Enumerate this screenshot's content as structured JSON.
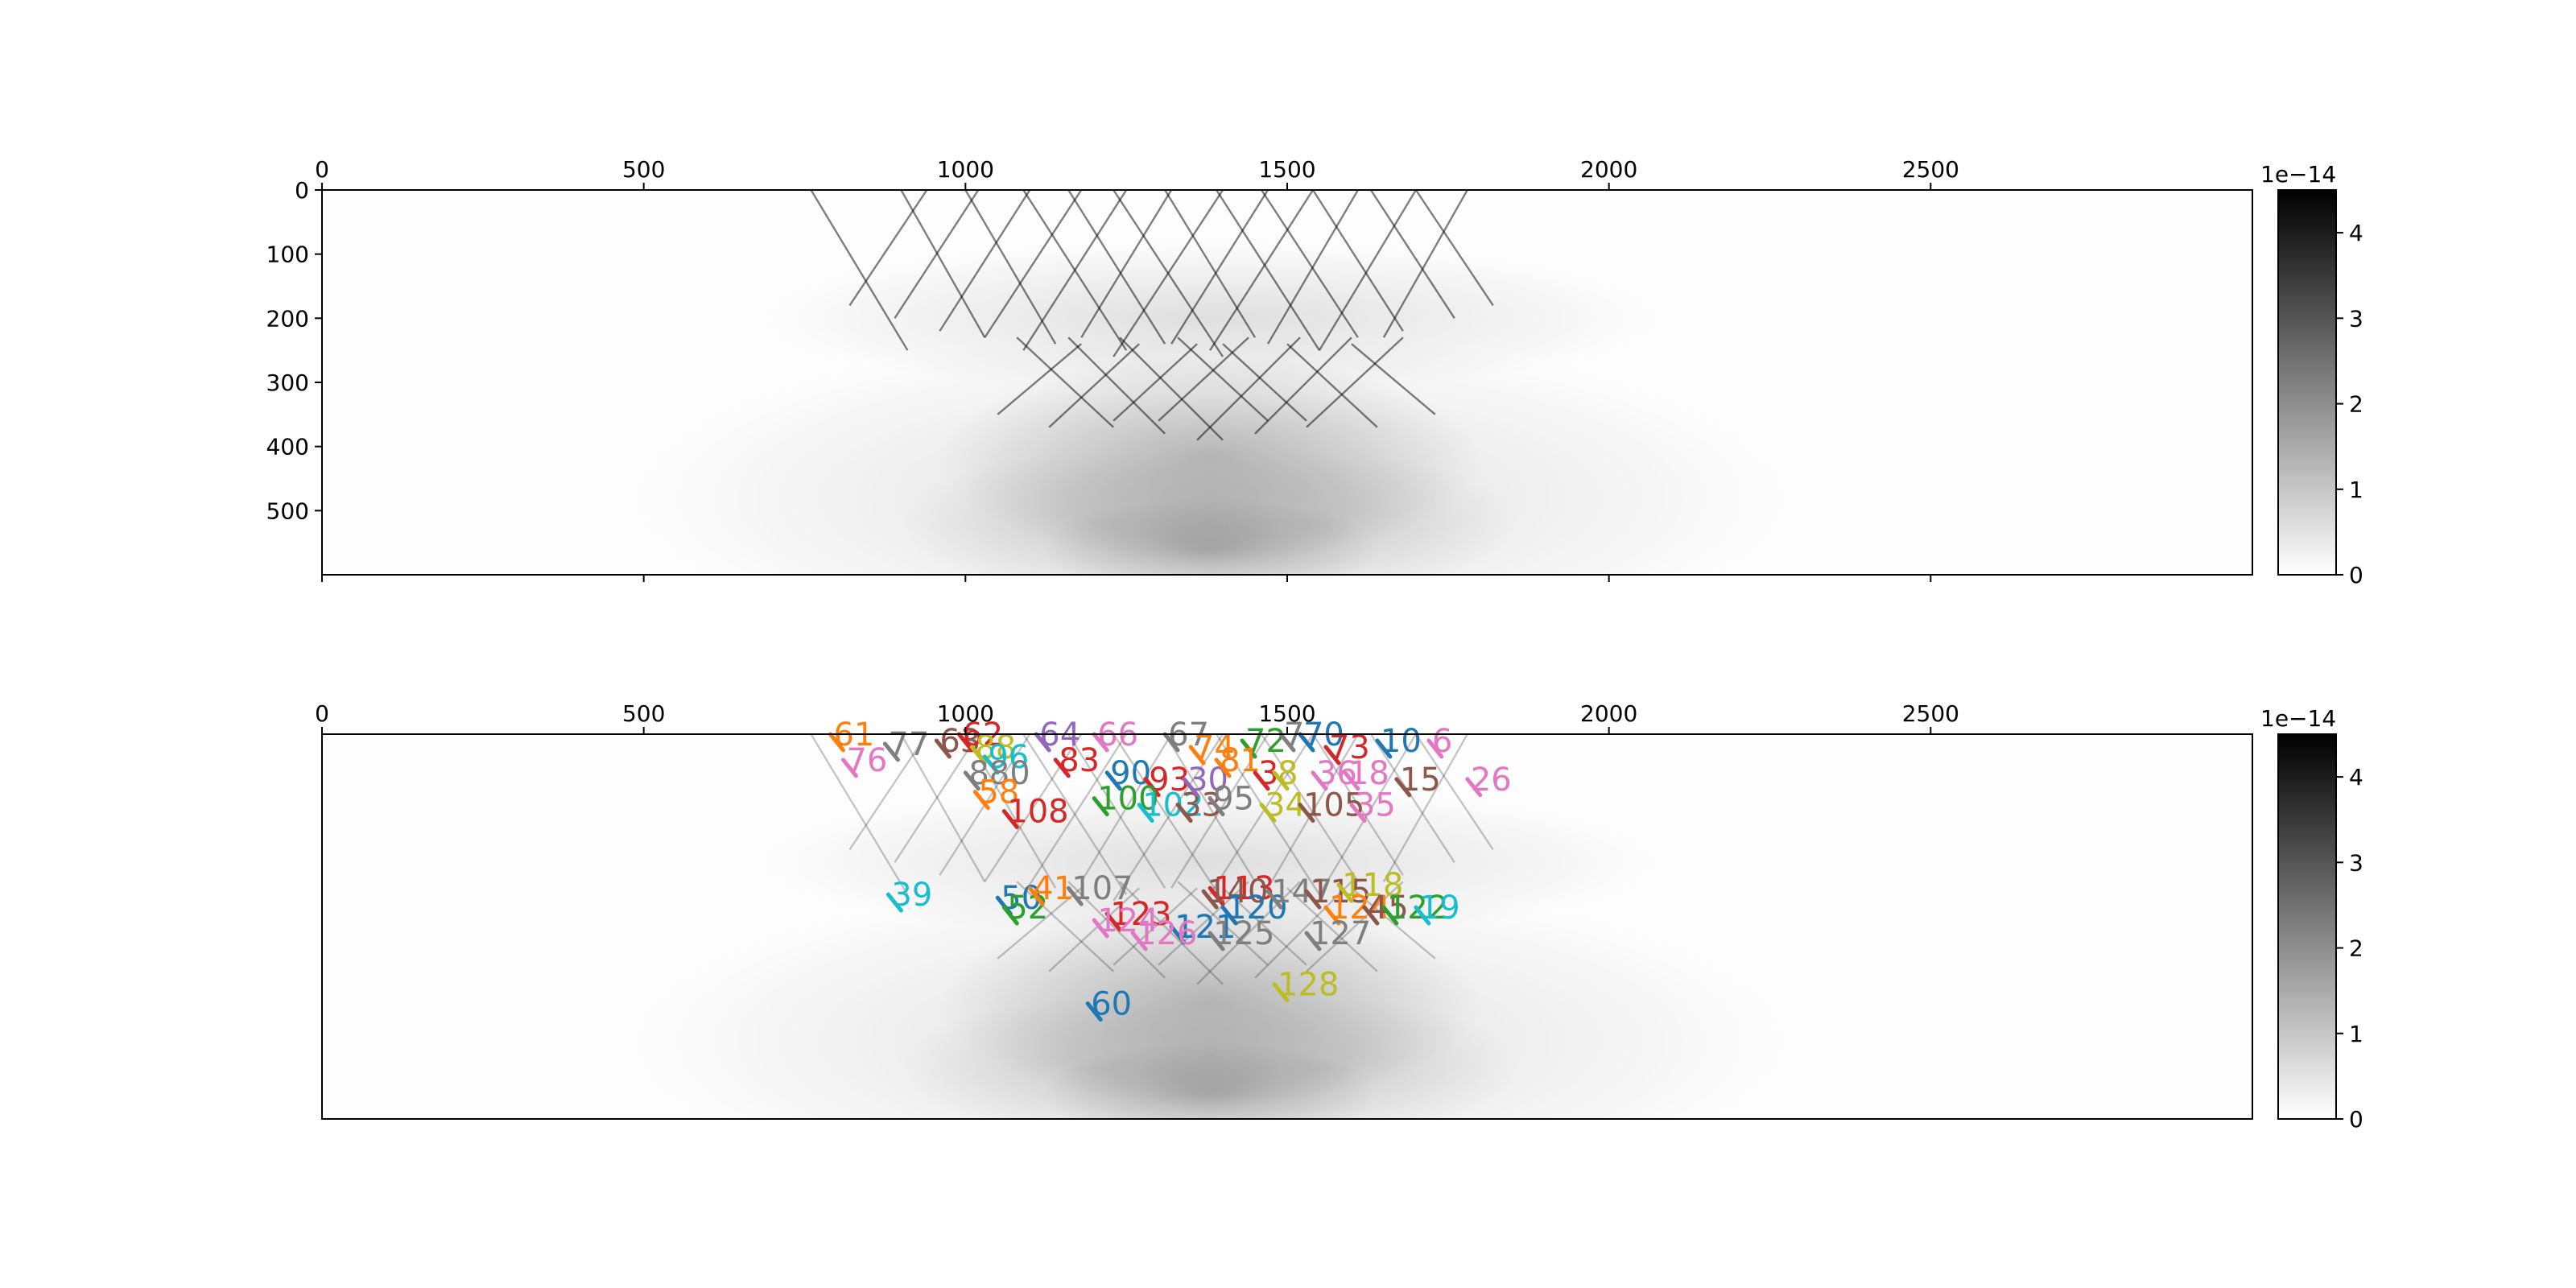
{
  "chart_data": [
    {
      "type": "heatmap",
      "panel": "top",
      "x_ticks": [
        0,
        500,
        1000,
        1500,
        2000,
        2500
      ],
      "y_ticks": [
        0,
        100,
        200,
        300,
        400,
        500
      ],
      "xlim": [
        0,
        3000
      ],
      "ylim": [
        600,
        0
      ],
      "x_tick_position": "top",
      "colormap": "gray_r",
      "colorbar": {
        "ticks": [
          0,
          1,
          2,
          3,
          4
        ],
        "offset_text": "1e−14",
        "vmin": 0,
        "vmax": 4.5
      },
      "streaks": [
        {
          "x": 760,
          "y": 0,
          "dx": 150,
          "dy": 250
        },
        {
          "x": 900,
          "y": 0,
          "dx": 130,
          "dy": 230
        },
        {
          "x": 1000,
          "y": 0,
          "dx": 140,
          "dy": 240
        },
        {
          "x": 1090,
          "y": 0,
          "dx": 160,
          "dy": 250
        },
        {
          "x": 1160,
          "y": 0,
          "dx": 150,
          "dy": 240
        },
        {
          "x": 1230,
          "y": 0,
          "dx": 170,
          "dy": 260
        },
        {
          "x": 1310,
          "y": 0,
          "dx": 140,
          "dy": 230
        },
        {
          "x": 1390,
          "y": 0,
          "dx": 160,
          "dy": 250
        },
        {
          "x": 1460,
          "y": 0,
          "dx": 150,
          "dy": 230
        },
        {
          "x": 1540,
          "y": 0,
          "dx": 140,
          "dy": 220
        },
        {
          "x": 1630,
          "y": 0,
          "dx": 130,
          "dy": 200
        },
        {
          "x": 1700,
          "y": 0,
          "dx": 120,
          "dy": 180
        },
        {
          "x": 1780,
          "y": 0,
          "dx": -130,
          "dy": 230
        },
        {
          "x": 1700,
          "y": 0,
          "dx": -150,
          "dy": 250
        },
        {
          "x": 1610,
          "y": 0,
          "dx": -140,
          "dy": 240
        },
        {
          "x": 1540,
          "y": 0,
          "dx": -160,
          "dy": 250
        },
        {
          "x": 1470,
          "y": 0,
          "dx": -150,
          "dy": 240
        },
        {
          "x": 1400,
          "y": 0,
          "dx": -170,
          "dy": 260
        },
        {
          "x": 1320,
          "y": 0,
          "dx": -140,
          "dy": 230
        },
        {
          "x": 1250,
          "y": 0,
          "dx": -160,
          "dy": 250
        },
        {
          "x": 1180,
          "y": 0,
          "dx": -150,
          "dy": 230
        },
        {
          "x": 1100,
          "y": 0,
          "dx": -140,
          "dy": 220
        },
        {
          "x": 1020,
          "y": 0,
          "dx": -130,
          "dy": 200
        },
        {
          "x": 940,
          "y": 0,
          "dx": -120,
          "dy": 180
        },
        {
          "x": 1080,
          "y": 230,
          "dx": 150,
          "dy": 140
        },
        {
          "x": 1160,
          "y": 230,
          "dx": 150,
          "dy": 150
        },
        {
          "x": 1240,
          "y": 230,
          "dx": 160,
          "dy": 160
        },
        {
          "x": 1330,
          "y": 230,
          "dx": 140,
          "dy": 130
        },
        {
          "x": 1400,
          "y": 240,
          "dx": 130,
          "dy": 120
        },
        {
          "x": 1500,
          "y": 240,
          "dx": 140,
          "dy": 130
        },
        {
          "x": 1600,
          "y": 240,
          "dx": 130,
          "dy": 110
        },
        {
          "x": 1680,
          "y": 230,
          "dx": -150,
          "dy": 140
        },
        {
          "x": 1600,
          "y": 230,
          "dx": -150,
          "dy": 150
        },
        {
          "x": 1520,
          "y": 230,
          "dx": -160,
          "dy": 160
        },
        {
          "x": 1440,
          "y": 230,
          "dx": -140,
          "dy": 130
        },
        {
          "x": 1360,
          "y": 240,
          "dx": -130,
          "dy": 120
        },
        {
          "x": 1270,
          "y": 240,
          "dx": -140,
          "dy": 130
        },
        {
          "x": 1180,
          "y": 240,
          "dx": -130,
          "dy": 110
        }
      ]
    },
    {
      "type": "heatmap",
      "panel": "bottom",
      "x_ticks": [
        0,
        500,
        1000,
        1500,
        2000,
        2500
      ],
      "xlim": [
        0,
        3000
      ],
      "ylim": [
        600,
        0
      ],
      "x_tick_position": "top",
      "y_ticks_shown": false,
      "colormap": "gray_r",
      "colorbar": {
        "ticks": [
          0,
          1,
          2,
          3,
          4
        ],
        "offset_text": "1e−14",
        "vmin": 0,
        "vmax": 4.5
      },
      "annotated_tracks": [
        {
          "label": "61",
          "x": 790,
          "y": 0,
          "color": "#ff7f0e",
          "dx": 20,
          "dy": 25
        },
        {
          "label": "76",
          "x": 810,
          "y": 40,
          "color": "#e377c2",
          "dx": 20,
          "dy": 25
        },
        {
          "label": "77",
          "x": 875,
          "y": 15,
          "color": "#7f7f7f",
          "dx": 20,
          "dy": 25
        },
        {
          "label": "63",
          "x": 955,
          "y": 10,
          "color": "#8c564b",
          "dx": 20,
          "dy": 25
        },
        {
          "label": "62",
          "x": 990,
          "y": 0,
          "color": "#d62728",
          "dx": 20,
          "dy": 25
        },
        {
          "label": "88",
          "x": 1010,
          "y": 20,
          "color": "#bcbd22",
          "dx": 20,
          "dy": 25
        },
        {
          "label": "96",
          "x": 1030,
          "y": 35,
          "color": "#17becf",
          "dx": 20,
          "dy": 25
        },
        {
          "label": "880",
          "x": 1000,
          "y": 60,
          "color": "#7f7f7f",
          "dx": 20,
          "dy": 25
        },
        {
          "label": "58",
          "x": 1015,
          "y": 90,
          "color": "#ff7f0e",
          "dx": 20,
          "dy": 25
        },
        {
          "label": "108",
          "x": 1060,
          "y": 120,
          "color": "#d62728",
          "dx": 20,
          "dy": 25
        },
        {
          "label": "64",
          "x": 1110,
          "y": 0,
          "color": "#9467bd",
          "dx": 20,
          "dy": 25
        },
        {
          "label": "66",
          "x": 1200,
          "y": 0,
          "color": "#e377c2",
          "dx": 20,
          "dy": 25
        },
        {
          "label": "67",
          "x": 1310,
          "y": 0,
          "color": "#7f7f7f",
          "dx": 20,
          "dy": 25
        },
        {
          "label": "83",
          "x": 1140,
          "y": 40,
          "color": "#d62728",
          "dx": 20,
          "dy": 25
        },
        {
          "label": "90",
          "x": 1220,
          "y": 60,
          "color": "#1f77b4",
          "dx": 20,
          "dy": 25
        },
        {
          "label": "93",
          "x": 1280,
          "y": 70,
          "color": "#d62728",
          "dx": 20,
          "dy": 25
        },
        {
          "label": "100",
          "x": 1200,
          "y": 100,
          "color": "#2ca02c",
          "dx": 20,
          "dy": 25
        },
        {
          "label": "102",
          "x": 1270,
          "y": 110,
          "color": "#17becf",
          "dx": 20,
          "dy": 25
        },
        {
          "label": "33",
          "x": 1330,
          "y": 110,
          "color": "#8c564b",
          "dx": 20,
          "dy": 25
        },
        {
          "label": "74",
          "x": 1350,
          "y": 20,
          "color": "#ff7f0e",
          "dx": 20,
          "dy": 25
        },
        {
          "label": "72",
          "x": 1430,
          "y": 10,
          "color": "#2ca02c",
          "dx": 20,
          "dy": 25
        },
        {
          "label": "70",
          "x": 1520,
          "y": 0,
          "color": "#1f77b4",
          "dx": 20,
          "dy": 25
        },
        {
          "label": "7",
          "x": 1490,
          "y": 0,
          "color": "#7f7f7f",
          "dx": 20,
          "dy": 25
        },
        {
          "label": "73",
          "x": 1560,
          "y": 20,
          "color": "#d62728",
          "dx": 20,
          "dy": 25
        },
        {
          "label": "10",
          "x": 1640,
          "y": 10,
          "color": "#1f77b4",
          "dx": 20,
          "dy": 25
        },
        {
          "label": "6",
          "x": 1720,
          "y": 10,
          "color": "#e377c2",
          "dx": 20,
          "dy": 25
        },
        {
          "label": "30",
          "x": 1340,
          "y": 70,
          "color": "#9467bd",
          "dx": 20,
          "dy": 25
        },
        {
          "label": "95",
          "x": 1380,
          "y": 100,
          "color": "#7f7f7f",
          "dx": 20,
          "dy": 25
        },
        {
          "label": "81",
          "x": 1390,
          "y": 40,
          "color": "#ff7f0e",
          "dx": 20,
          "dy": 25
        },
        {
          "label": "3",
          "x": 1450,
          "y": 60,
          "color": "#d62728",
          "dx": 20,
          "dy": 25
        },
        {
          "label": "8",
          "x": 1480,
          "y": 60,
          "color": "#bcbd22",
          "dx": 20,
          "dy": 25
        },
        {
          "label": "36",
          "x": 1540,
          "y": 60,
          "color": "#e377c2",
          "dx": 20,
          "dy": 25
        },
        {
          "label": "18",
          "x": 1590,
          "y": 60,
          "color": "#e377c2",
          "dx": 20,
          "dy": 25
        },
        {
          "label": "15",
          "x": 1670,
          "y": 70,
          "color": "#8c564b",
          "dx": 20,
          "dy": 25
        },
        {
          "label": "26",
          "x": 1780,
          "y": 70,
          "color": "#e377c2",
          "dx": 20,
          "dy": 25
        },
        {
          "label": "34",
          "x": 1460,
          "y": 110,
          "color": "#bcbd22",
          "dx": 20,
          "dy": 25
        },
        {
          "label": "105",
          "x": 1520,
          "y": 110,
          "color": "#8c564b",
          "dx": 20,
          "dy": 25
        },
        {
          "label": "35",
          "x": 1600,
          "y": 110,
          "color": "#e377c2",
          "dx": 20,
          "dy": 25
        },
        {
          "label": "39",
          "x": 880,
          "y": 250,
          "color": "#17becf",
          "dx": 20,
          "dy": 25
        },
        {
          "label": "50",
          "x": 1050,
          "y": 255,
          "color": "#1f77b4",
          "dx": 20,
          "dy": 25
        },
        {
          "label": "52",
          "x": 1060,
          "y": 270,
          "color": "#2ca02c",
          "dx": 20,
          "dy": 25
        },
        {
          "label": "41",
          "x": 1100,
          "y": 240,
          "color": "#ff7f0e",
          "dx": 20,
          "dy": 25
        },
        {
          "label": "107",
          "x": 1160,
          "y": 240,
          "color": "#7f7f7f",
          "dx": 20,
          "dy": 25
        },
        {
          "label": "123",
          "x": 1220,
          "y": 280,
          "color": "#d62728",
          "dx": 20,
          "dy": 25
        },
        {
          "label": "124",
          "x": 1200,
          "y": 290,
          "color": "#e377c2",
          "dx": 20,
          "dy": 25
        },
        {
          "label": "121",
          "x": 1320,
          "y": 300,
          "color": "#1f77b4",
          "dx": 20,
          "dy": 25
        },
        {
          "label": "126",
          "x": 1260,
          "y": 310,
          "color": "#e377c2",
          "dx": 20,
          "dy": 25
        },
        {
          "label": "125",
          "x": 1380,
          "y": 310,
          "color": "#7f7f7f",
          "dx": 20,
          "dy": 25
        },
        {
          "label": "113",
          "x": 1380,
          "y": 240,
          "color": "#d62728",
          "dx": 20,
          "dy": 25
        },
        {
          "label": "140",
          "x": 1370,
          "y": 245,
          "color": "#8c564b",
          "dx": 20,
          "dy": 25
        },
        {
          "label": "120",
          "x": 1400,
          "y": 270,
          "color": "#1f77b4",
          "dx": 20,
          "dy": 25
        },
        {
          "label": "147",
          "x": 1470,
          "y": 245,
          "color": "#7f7f7f",
          "dx": 20,
          "dy": 25
        },
        {
          "label": "115",
          "x": 1530,
          "y": 245,
          "color": "#8c564b",
          "dx": 20,
          "dy": 25
        },
        {
          "label": "118",
          "x": 1580,
          "y": 235,
          "color": "#bcbd22",
          "dx": 20,
          "dy": 25
        },
        {
          "label": "124",
          "x": 1560,
          "y": 270,
          "color": "#ff7f0e",
          "dx": 20,
          "dy": 25
        },
        {
          "label": "45",
          "x": 1620,
          "y": 270,
          "color": "#8c564b",
          "dx": 20,
          "dy": 25
        },
        {
          "label": "122",
          "x": 1650,
          "y": 270,
          "color": "#2ca02c",
          "dx": 20,
          "dy": 25
        },
        {
          "label": "19",
          "x": 1700,
          "y": 270,
          "color": "#17becf",
          "dx": 20,
          "dy": 25
        },
        {
          "label": "127",
          "x": 1530,
          "y": 310,
          "color": "#7f7f7f",
          "dx": 20,
          "dy": 25
        },
        {
          "label": "60",
          "x": 1190,
          "y": 420,
          "color": "#1f77b4",
          "dx": 20,
          "dy": 25
        },
        {
          "label": "128",
          "x": 1480,
          "y": 390,
          "color": "#bcbd22",
          "dx": 20,
          "dy": 25
        }
      ]
    }
  ]
}
